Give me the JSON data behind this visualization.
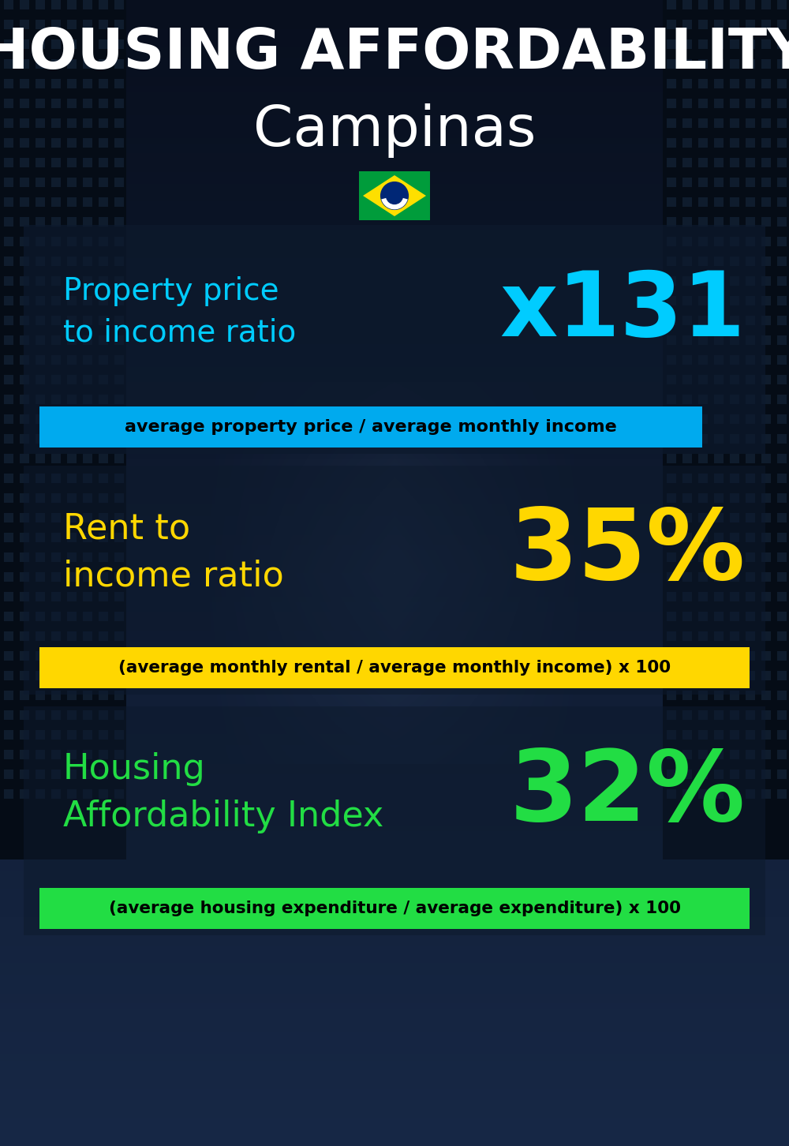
{
  "title_line1": "HOUSING AFFORDABILITY",
  "title_line2": "Campinas",
  "section1_label": "Property price\nto income ratio",
  "section1_value": "x131",
  "section1_label_color": "#00CCFF",
  "section1_value_color": "#00CCFF",
  "section1_banner": "average property price / average monthly income",
  "section1_banner_bg": "#00AAEE",
  "section2_label": "Rent to\nincome ratio",
  "section2_value": "35%",
  "section2_label_color": "#FFD700",
  "section2_value_color": "#FFD700",
  "section2_banner": "(average monthly rental / average monthly income) x 100",
  "section2_banner_bg": "#FFD700",
  "section3_label": "Housing\nAffordability Index",
  "section3_value": "32%",
  "section3_label_color": "#22DD44",
  "section3_value_color": "#22DD44",
  "section3_banner": "(average housing expenditure / average expenditure) x 100",
  "section3_banner_bg": "#22DD44",
  "bg_dark": "#060d18",
  "title_color": "#FFFFFF",
  "banner_text_color": "#000000",
  "panel_color": "#0d1f35",
  "fig_width": 10.0,
  "fig_height": 14.52,
  "dpi": 100
}
